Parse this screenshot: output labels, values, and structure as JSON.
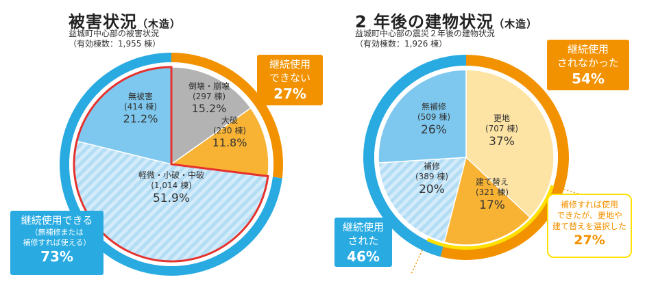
{
  "left": {
    "title": "被害状況",
    "title_suffix": "（木造）",
    "subtitle_line1": "益城町中心部の被害状況",
    "subtitle_line2": "（有効棟数：1,955 棟）",
    "callout_unusable": {
      "line1": "継続使用",
      "line2": "できない",
      "percent": "27%"
    },
    "callout_usable": {
      "line1": "継続使用できる",
      "line2": "（無補修または",
      "line3": "補修すれば使える）",
      "percent": "73%"
    }
  },
  "right": {
    "title": "2 年後の建物状況",
    "title_suffix": "（木造）",
    "subtitle_line1": "益城町中心部の震災２年後の建物状況",
    "subtitle_line2": "（有効棟数：1,926 棟）",
    "callout_not_used": {
      "line1": "継続使用",
      "line2": "されなかった",
      "percent": "54%"
    },
    "callout_used": {
      "line1": "継続使用",
      "line2": "された",
      "percent": "46%"
    },
    "callout_repairable": {
      "line1": "補修すれば使用",
      "line2": "できたが、更地や",
      "line3": "建て替えを選択した",
      "percent": "27%"
    }
  },
  "colors": {
    "orange": "#f39200",
    "blue": "#29abe2",
    "light_blue": "#7ec8ef",
    "gray": "#b3b3b3",
    "yellow_orange": "#f8b334",
    "pale_yellow": "#fde3a4",
    "red": "#e5322d",
    "yellow": "#ffe000"
  },
  "chart_data": [
    {
      "type": "pie",
      "title": "被害状況（木造）",
      "slices": [
        {
          "name": "倒壊・崩壊",
          "count": "(297 棟)",
          "value": 15.2,
          "label": "15.2%",
          "color": "#b3b3b3"
        },
        {
          "name": "大破",
          "count": "(230 棟)",
          "value": 11.8,
          "label": "11.8%",
          "color": "#f8b334"
        },
        {
          "name": "軽微・小破・中破",
          "count": "(1,014 棟)",
          "value": 51.9,
          "label": "51.9%",
          "color": "#c3e4f7"
        },
        {
          "name": "無被害",
          "count": "(414 棟)",
          "value": 21.2,
          "label": "21.2%",
          "color": "#7ec8ef"
        }
      ],
      "outer_ring": [
        {
          "name": "継続使用できない",
          "value": 27,
          "color": "#f39200"
        },
        {
          "name": "継続使用できる",
          "value": 73,
          "color": "#29abe2"
        }
      ]
    },
    {
      "type": "pie",
      "title": "2 年後の建物状況（木造）",
      "slices": [
        {
          "name": "更地",
          "count": "(707 棟)",
          "value": 37,
          "label": "37%",
          "color": "#fde3a4"
        },
        {
          "name": "建て替え",
          "count": "(321 棟)",
          "value": 17,
          "label": "17%",
          "color": "#f8b334"
        },
        {
          "name": "補修",
          "count": "(389 棟)",
          "value": 20,
          "label": "20%",
          "color": "#c3e4f7"
        },
        {
          "name": "無補修",
          "count": "(509 棟)",
          "value": 26,
          "label": "26%",
          "color": "#7ec8ef"
        }
      ],
      "outer_ring": [
        {
          "name": "継続使用されなかった",
          "value": 54,
          "color": "#f39200"
        },
        {
          "name": "継続使用された",
          "value": 46,
          "color": "#29abe2"
        }
      ],
      "highlight_ring": {
        "name": "補修すれば使用できたが、更地や建て替えを選択した",
        "value": 27,
        "color": "#ffe000"
      }
    }
  ]
}
